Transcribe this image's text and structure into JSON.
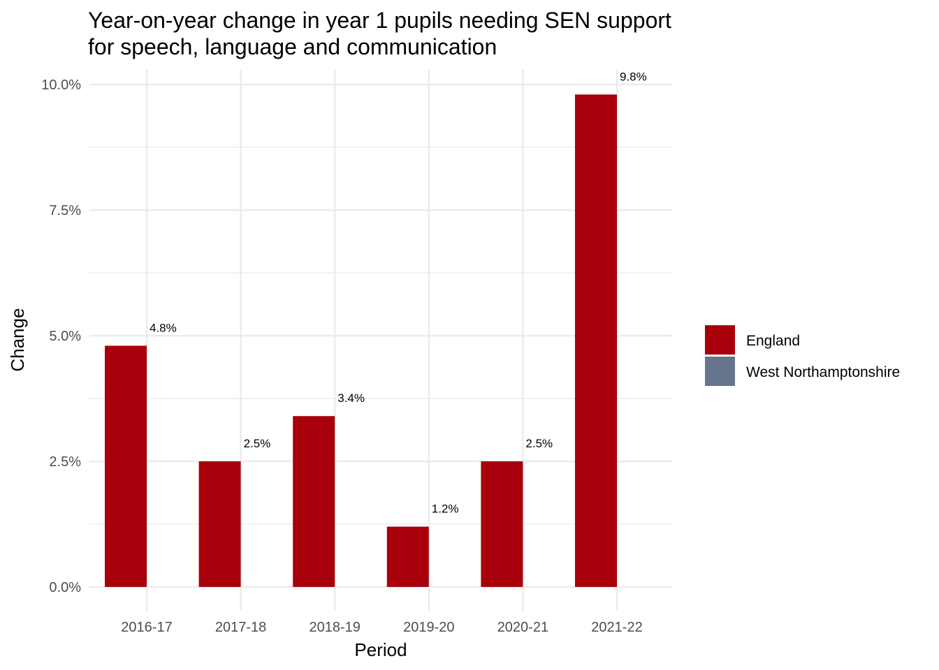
{
  "chart_data": {
    "type": "bar",
    "title_lines": [
      "Year-on-year change in year 1 pupils needing SEN support",
      "for speech, language and communication"
    ],
    "xlabel": "Period",
    "ylabel": "Change",
    "categories": [
      "2016-17",
      "2017-18",
      "2018-19",
      "2019-20",
      "2020-21",
      "2021-22"
    ],
    "series": [
      {
        "name": "England",
        "color": "#A8000A",
        "values": [
          4.8,
          2.5,
          3.4,
          1.2,
          2.5,
          9.8
        ],
        "labels": [
          "4.8%",
          "2.5%",
          "3.4%",
          "1.2%",
          "2.5%",
          "9.8%"
        ]
      },
      {
        "name": "West Northamptonshire",
        "color": "#66758C",
        "values": [
          null,
          null,
          null,
          null,
          null,
          null
        ],
        "labels": []
      }
    ],
    "ylim": [
      0,
      10
    ],
    "yticks": [
      0,
      2.5,
      5,
      7.5,
      10
    ],
    "ytick_labels": [
      "0.0%",
      "2.5%",
      "5.0%",
      "7.5%",
      "10.0%"
    ],
    "grid": true,
    "legend_position": "right"
  }
}
